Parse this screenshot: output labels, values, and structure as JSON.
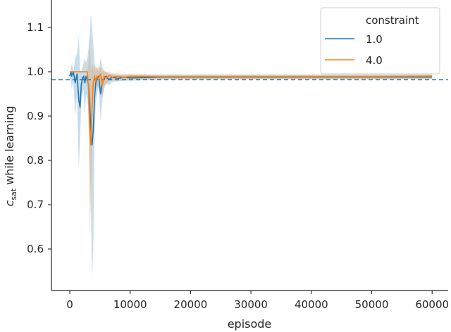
{
  "chart_data": {
    "type": "line",
    "title": "",
    "xlabel": "episode",
    "ylabel": "c_sat while learning",
    "ylabel_main": "c",
    "ylabel_sub": "sat",
    "ylabel_rest": " while learning",
    "xlim": [
      -3000,
      62500
    ],
    "ylim": [
      0.515,
      1.155
    ],
    "xticks": [
      0,
      10000,
      20000,
      30000,
      40000,
      50000,
      60000
    ],
    "xtick_labels": [
      "0",
      "10000",
      "20000",
      "30000",
      "40000",
      "50000",
      "60000"
    ],
    "yticks": [
      0.6,
      0.7,
      0.8,
      0.9,
      1.0,
      1.1
    ],
    "ytick_labels": [
      "0.6",
      "0.7",
      "0.8",
      "0.9",
      "1.0",
      "1.1"
    ],
    "grid": false,
    "legend": {
      "title": "constraint",
      "position": "upper right",
      "entries": [
        "1.0",
        "4.0"
      ]
    },
    "reference_line": {
      "y": 0.982,
      "style": "dashed",
      "color": "#1f77b4"
    },
    "series": [
      {
        "name": "1.0",
        "color": "#1f77b4",
        "x": [
          0,
          200,
          300,
          600,
          900,
          1200,
          1500,
          1700,
          1900,
          2100,
          2300,
          2500,
          2700,
          2900,
          3100,
          3300,
          3500,
          3700,
          3900,
          4100,
          4300,
          4500,
          4800,
          5100,
          5400,
          5700,
          6000,
          6500,
          7000,
          8000,
          9000,
          10000,
          15000,
          20000,
          30000,
          40000,
          50000,
          60000
        ],
        "values": [
          0.99,
          1.0,
          0.99,
          1.0,
          0.975,
          0.995,
          0.935,
          0.92,
          0.97,
          0.985,
          0.99,
          0.975,
          0.99,
          0.98,
          0.97,
          0.93,
          0.86,
          0.835,
          0.87,
          0.94,
          0.975,
          0.985,
          0.99,
          0.95,
          0.975,
          0.985,
          0.99,
          0.982,
          0.988,
          0.985,
          0.988,
          0.986,
          0.988,
          0.988,
          0.988,
          0.988,
          0.988,
          0.988
        ],
        "ci_low": [
          0.97,
          0.99,
          0.96,
          0.98,
          0.9,
          0.95,
          0.78,
          0.85,
          0.93,
          0.95,
          0.96,
          0.9,
          0.95,
          0.94,
          0.9,
          0.8,
          0.7,
          0.535,
          0.6,
          0.85,
          0.93,
          0.95,
          0.97,
          0.89,
          0.94,
          0.96,
          0.975,
          0.97,
          0.977,
          0.978,
          0.98,
          0.98,
          0.982,
          0.983,
          0.983,
          0.983,
          0.983,
          0.983
        ],
        "ci_high": [
          1.0,
          1.0,
          1.02,
          1.0,
          1.03,
          1.04,
          1.08,
          1.0,
          1.0,
          1.01,
          1.02,
          1.03,
          1.02,
          1.03,
          1.05,
          1.08,
          1.13,
          1.1,
          1.06,
          1.02,
          1.01,
          1.01,
          1.0,
          1.03,
          1.01,
          1.0,
          1.0,
          0.995,
          0.995,
          0.992,
          0.993,
          0.992,
          0.993,
          0.993,
          0.993,
          0.993,
          0.993,
          0.993
        ]
      },
      {
        "name": "4.0",
        "color": "#ff7f0e",
        "x": [
          0,
          500,
          1000,
          1500,
          2000,
          2500,
          2900,
          3100,
          3300,
          3500,
          3700,
          3900,
          4100,
          4300,
          4500,
          4800,
          5100,
          5400,
          5700,
          6000,
          6500,
          7000,
          8000,
          9000,
          10000,
          15000,
          20000,
          30000,
          40000,
          50000,
          60000
        ],
        "values": [
          1.0,
          1.0,
          1.0,
          1.0,
          1.0,
          1.0,
          1.0,
          0.96,
          0.88,
          0.835,
          0.92,
          0.975,
          0.99,
          0.98,
          0.99,
          0.985,
          0.995,
          0.97,
          0.99,
          0.985,
          0.992,
          0.988,
          0.99,
          0.987,
          0.99,
          0.989,
          0.989,
          0.989,
          0.989,
          0.989,
          0.99
        ],
        "ci_low": [
          1.0,
          1.0,
          1.0,
          1.0,
          1.0,
          1.0,
          1.0,
          0.9,
          0.63,
          0.7,
          0.85,
          0.95,
          0.97,
          0.96,
          0.97,
          0.96,
          0.97,
          0.94,
          0.97,
          0.97,
          0.98,
          0.98,
          0.982,
          0.98,
          0.983,
          0.984,
          0.984,
          0.984,
          0.984,
          0.984,
          0.985
        ],
        "ci_high": [
          1.0,
          1.0,
          1.0,
          1.0,
          1.0,
          1.0,
          1.0,
          1.02,
          1.08,
          1.0,
          1.02,
          1.01,
          1.01,
          1.0,
          1.01,
          1.01,
          1.01,
          1.0,
          1.005,
          1.0,
          1.0,
          0.996,
          0.997,
          0.994,
          0.996,
          0.994,
          0.994,
          0.994,
          0.994,
          0.994,
          0.995
        ]
      }
    ]
  }
}
